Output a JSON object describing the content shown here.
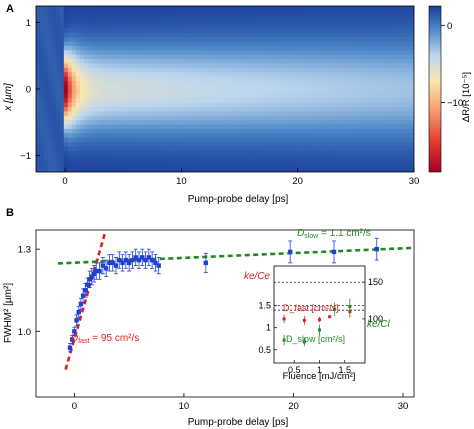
{
  "panels": {
    "a": "A",
    "b": "B"
  },
  "chart_data": [
    {
      "type": "heatmap",
      "panel": "A",
      "xlabel": "Pump-probe delay [ps]",
      "ylabel": "x [µm]",
      "xlim": [
        -2.5,
        30
      ],
      "ylim": [
        -1.25,
        1.25
      ],
      "xticks": [
        0,
        10,
        20,
        30
      ],
      "yticks": [
        -1,
        0,
        1
      ],
      "colorbar": {
        "label": "ΔR/R [10⁻⁵]",
        "ticks": [
          0,
          -10
        ],
        "range": [
          -19,
          2.5
        ],
        "colors": [
          "#a50026",
          "#e03b2f",
          "#f7a072",
          "#fbe7b0",
          "#bcd6ee",
          "#4f8ac8",
          "#1a3d9a"
        ]
      }
    },
    {
      "type": "scatter",
      "panel": "B",
      "xlabel": "Pump-probe delay [ps]",
      "ylabel": "FWHM² [µm²]",
      "xlim": [
        -3.5,
        31
      ],
      "ylim": [
        0.76,
        1.37
      ],
      "xticks": [
        0,
        10,
        20,
        30
      ],
      "yticks": [
        1.0,
        1.3
      ],
      "series": [
        {
          "marker": "square",
          "color": "#1f3fd6",
          "x": [
            -0.4,
            -0.2,
            0,
            0.2,
            0.4,
            0.6,
            0.8,
            1.0,
            1.2,
            1.4,
            1.6,
            1.8,
            2.0,
            2.3,
            2.6,
            2.9,
            3.2,
            3.5,
            3.8,
            4.1,
            4.4,
            4.7,
            5.0,
            5.3,
            5.6,
            5.9,
            6.2,
            6.5,
            6.8,
            7.1,
            7.4,
            7.7,
            12,
            19.7,
            23.7,
            27.6
          ],
          "y": [
            0.94,
            0.97,
            1.0,
            1.04,
            1.07,
            1.1,
            1.13,
            1.15,
            1.17,
            1.19,
            1.2,
            1.21,
            1.22,
            1.22,
            1.24,
            1.23,
            1.25,
            1.25,
            1.24,
            1.26,
            1.25,
            1.26,
            1.25,
            1.26,
            1.27,
            1.26,
            1.27,
            1.26,
            1.27,
            1.26,
            1.25,
            1.24,
            1.25,
            1.29,
            1.29,
            1.3
          ],
          "yerr": [
            0.015,
            0.015,
            0.015,
            0.02,
            0.02,
            0.02,
            0.025,
            0.025,
            0.025,
            0.03,
            0.03,
            0.03,
            0.03,
            0.03,
            0.03,
            0.03,
            0.03,
            0.03,
            0.03,
            0.03,
            0.03,
            0.03,
            0.03,
            0.03,
            0.03,
            0.03,
            0.03,
            0.03,
            0.03,
            0.03,
            0.03,
            0.03,
            0.035,
            0.04,
            0.04,
            0.04
          ]
        }
      ],
      "fits": [
        {
          "label": "D_fast = 95 cm²/s",
          "color": "#e02020",
          "x": [
            -0.8,
            2.8
          ],
          "y": [
            0.86,
            1.36
          ]
        },
        {
          "label": "D_slow = 1.1 cm²/s",
          "color": "#1f8a1f",
          "x": [
            -1.5,
            31
          ],
          "y": [
            1.248,
            1.305
          ]
        }
      ],
      "annotations": [
        {
          "prefix": "D",
          "sub": "fast",
          "suffix": " = 95 cm²/s",
          "color": "#e02020"
        },
        {
          "prefix": "D",
          "sub": "slow",
          "suffix": " = 1.1 cm²/s",
          "color": "#1f8a1f"
        }
      ],
      "inset": {
        "type": "scatter",
        "xlabel": "Fluence [mJ/cm²]",
        "xlim": [
          0.1,
          1.9
        ],
        "xticks": [
          0.5,
          1,
          1.5
        ],
        "ylim_left": [
          0.2,
          2.4
        ],
        "yticks_left": [
          0.5,
          1,
          1.5
        ],
        "ylim_right": [
          40,
          172
        ],
        "yticks_right": [
          100,
          150
        ],
        "labels": {
          "red": "D_fast [cm²/s]",
          "green": "D_slow [cm²/s]",
          "ke_Ce": "ke/Ce",
          "ke_Cl": "ke/Cl"
        },
        "dashed_right": [
          150,
          112
        ],
        "dashed_left": [
          1.5
        ],
        "red": {
          "axis": "right",
          "x": [
            0.3,
            0.7,
            1.0,
            1.2,
            1.6
          ],
          "y": [
            100,
            98,
            99,
            103,
            110
          ],
          "yerr": [
            6,
            6,
            4,
            2,
            8
          ]
        },
        "green": {
          "axis": "left",
          "x": [
            0.3,
            0.7,
            1.0,
            1.3,
            1.6
          ],
          "y": [
            0.72,
            0.68,
            0.95,
            1.42,
            1.48
          ],
          "yerr": [
            0.12,
            0.1,
            0.12,
            0.15,
            0.18
          ]
        }
      }
    }
  ]
}
